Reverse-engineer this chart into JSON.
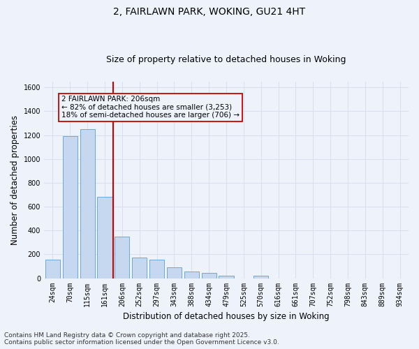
{
  "title_line1": "2, FAIRLAWN PARK, WOKING, GU21 4HT",
  "title_line2": "Size of property relative to detached houses in Woking",
  "xlabel": "Distribution of detached houses by size in Woking",
  "ylabel": "Number of detached properties",
  "categories": [
    "24sqm",
    "70sqm",
    "115sqm",
    "161sqm",
    "206sqm",
    "252sqm",
    "297sqm",
    "343sqm",
    "388sqm",
    "434sqm",
    "479sqm",
    "525sqm",
    "570sqm",
    "616sqm",
    "661sqm",
    "707sqm",
    "752sqm",
    "798sqm",
    "843sqm",
    "889sqm",
    "934sqm"
  ],
  "values": [
    155,
    1190,
    1250,
    680,
    350,
    175,
    155,
    90,
    55,
    45,
    20,
    0,
    20,
    0,
    0,
    0,
    0,
    0,
    0,
    0,
    0
  ],
  "bar_color": "#c5d8ef",
  "bar_edge_color": "#5a9fd4",
  "red_line_color": "#cc0000",
  "annotation_line1": "2 FAIRLAWN PARK: 206sqm",
  "annotation_line2": "← 82% of detached houses are smaller (3,253)",
  "annotation_line3": "18% of semi-detached houses are larger (706) →",
  "ylim": [
    0,
    1650
  ],
  "yticks": [
    0,
    200,
    400,
    600,
    800,
    1000,
    1200,
    1400,
    1600
  ],
  "footer_line1": "Contains HM Land Registry data © Crown copyright and database right 2025.",
  "footer_line2": "Contains public sector information licensed under the Open Government Licence v3.0.",
  "bg_color": "#eef2fb",
  "grid_color": "#d8e0f0",
  "title_fontsize": 10,
  "subtitle_fontsize": 9,
  "axis_label_fontsize": 8.5,
  "tick_fontsize": 7,
  "annotation_fontsize": 7.5,
  "footer_fontsize": 6.5
}
